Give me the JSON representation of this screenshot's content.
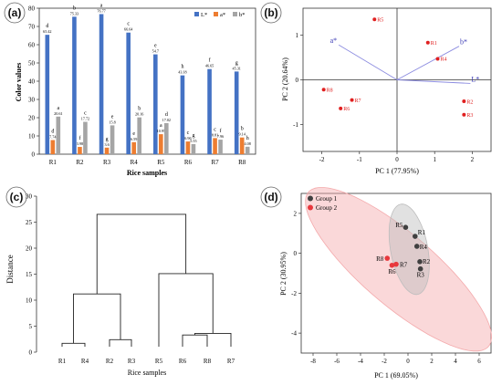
{
  "chart_data": [
    {
      "panel": "(a)",
      "type": "bar",
      "ylabel": "Color values",
      "xlabel": "Rice samples",
      "ylim": [
        0,
        80
      ],
      "yticks": [
        0,
        10,
        20,
        30,
        40,
        50,
        60,
        70,
        80
      ],
      "categories": [
        "R1",
        "R2",
        "R3",
        "R4",
        "R5",
        "R6",
        "R7",
        "R8"
      ],
      "legend_position": "top-right",
      "series": [
        {
          "name": "L*",
          "color": "#4472c4",
          "values": [
            65.42,
            75.33,
            76.77,
            66.64,
            54.7,
            43.18,
            46.65,
            45.31
          ],
          "labels": [
            "65.42",
            "75.33",
            "76.77",
            "66.64",
            "54.7",
            "43.18",
            "46.65",
            "45.31"
          ],
          "letters": [
            "d",
            "b",
            "a",
            "c",
            "e",
            "h",
            "f",
            "g"
          ]
        },
        {
          "name": "a*",
          "color": "#ed7d31",
          "values": [
            7.74,
            3.98,
            3.6,
            6.59,
            10.95,
            6.96,
            8.81,
            9.14
          ],
          "labels": [
            "7.74",
            "3.98",
            "3.6",
            "6.59",
            "10.95",
            "6.96",
            "8.81",
            "9.14"
          ],
          "letters": [
            "d",
            "f",
            "g",
            "e",
            "a",
            "c",
            "c",
            "b"
          ]
        },
        {
          "name": "b*",
          "color": "#a5a5a5",
          "values": [
            20.61,
            17.72,
            15.8,
            20.16,
            17.02,
            5.55,
            7.96,
            4.08
          ],
          "labels": [
            "20.61",
            "17.72",
            "15.8",
            "20.16",
            "17.02",
            "5.55",
            "7.96",
            "4.08"
          ],
          "letters": [
            "a",
            "c",
            "e",
            "b",
            "d",
            "g",
            "f",
            "h"
          ]
        }
      ]
    },
    {
      "panel": "(b)",
      "type": "scatter",
      "xlabel": "PC 1 (77.95%)",
      "ylabel": "PC 2 (20.64%)",
      "xlim": [
        -2.5,
        2.5
      ],
      "ylim": [
        -1.6,
        1.6
      ],
      "xticks": [
        -2,
        -1,
        0,
        1,
        2
      ],
      "yticks": [
        -1,
        0,
        1
      ],
      "points": [
        {
          "label": "R1",
          "x": 0.82,
          "y": 0.83
        },
        {
          "label": "R2",
          "x": 1.78,
          "y": -0.48
        },
        {
          "label": "R3",
          "x": 1.78,
          "y": -0.78
        },
        {
          "label": "R4",
          "x": 1.08,
          "y": 0.47
        },
        {
          "label": "R5",
          "x": -0.6,
          "y": 1.35
        },
        {
          "label": "R6",
          "x": -1.5,
          "y": -0.64
        },
        {
          "label": "R7",
          "x": -1.2,
          "y": -0.45
        },
        {
          "label": "R8",
          "x": -1.95,
          "y": -0.22
        }
      ],
      "vectors": [
        {
          "label": "a*",
          "x": -1.55,
          "y": 0.78
        },
        {
          "label": "b*",
          "x": 1.65,
          "y": 0.75
        },
        {
          "label": "L*",
          "x": 1.95,
          "y": -0.08
        }
      ]
    },
    {
      "panel": "(c)",
      "type": "dendrogram",
      "xlabel": "Rice samples",
      "ylabel": "Distance",
      "ylim": [
        0,
        30
      ],
      "yticks": [
        0,
        5,
        10,
        15,
        20,
        25,
        30
      ],
      "leaves": [
        "R1",
        "R4",
        "R2",
        "R3",
        "R5",
        "R6",
        "R8",
        "R7"
      ],
      "merges": [
        {
          "left": "R1",
          "right": "R4",
          "height": 1.7
        },
        {
          "left": "R2",
          "right": "R3",
          "height": 2.4
        },
        {
          "left": "R6",
          "right": "R8",
          "height": 3.3
        },
        {
          "left": "R6,R8",
          "right": "R7",
          "height": 3.6
        },
        {
          "left": "R1,R4",
          "right": "R2,R3",
          "height": 11.2
        },
        {
          "left": "R5",
          "right": "R6,R8,R7",
          "height": 15.1
        },
        {
          "left": "R1,R4,R2,R3",
          "right": "R5,R6,R8,R7",
          "height": 26.5
        }
      ]
    },
    {
      "panel": "(d)",
      "type": "scatter",
      "xlabel": "PC 1 (69.05%)",
      "ylabel": "PC 2 (30.95%)",
      "xlim": [
        -9,
        7
      ],
      "ylim": [
        -5,
        3
      ],
      "xticks": [
        -8,
        -6,
        -4,
        -2,
        0,
        2,
        4,
        6
      ],
      "yticks": [
        -4,
        -2,
        0,
        2
      ],
      "legend_position": "top-left",
      "groups": [
        {
          "name": "Group 1",
          "color": "#404040",
          "ellipse_color": "#bdbdbd",
          "ellipse": {
            "cx": 0.1,
            "cy": 0.2,
            "rx": 1.5,
            "ry": 2.4,
            "angle": 25
          },
          "points": [
            {
              "label": "R1",
              "x": 0.6,
              "y": 0.85
            },
            {
              "label": "R4",
              "x": 0.75,
              "y": 0.35
            },
            {
              "label": "R5",
              "x": -0.2,
              "y": 1.3
            },
            {
              "label": "R2",
              "x": 1.0,
              "y": -0.42
            },
            {
              "label": "R3",
              "x": 1.05,
              "y": -0.78
            }
          ]
        },
        {
          "name": "Group 2",
          "color": "#e8383d",
          "ellipse_color": "#f4a9ab",
          "ellipse": {
            "cx": -0.8,
            "cy": -0.8,
            "rx": 8.6,
            "ry": 2.1,
            "angle": -25
          },
          "points": [
            {
              "label": "R8",
              "x": -1.75,
              "y": -0.25
            },
            {
              "label": "R7",
              "x": -1.0,
              "y": -0.55
            },
            {
              "label": "R6",
              "x": -1.35,
              "y": -0.6
            }
          ]
        }
      ]
    }
  ]
}
